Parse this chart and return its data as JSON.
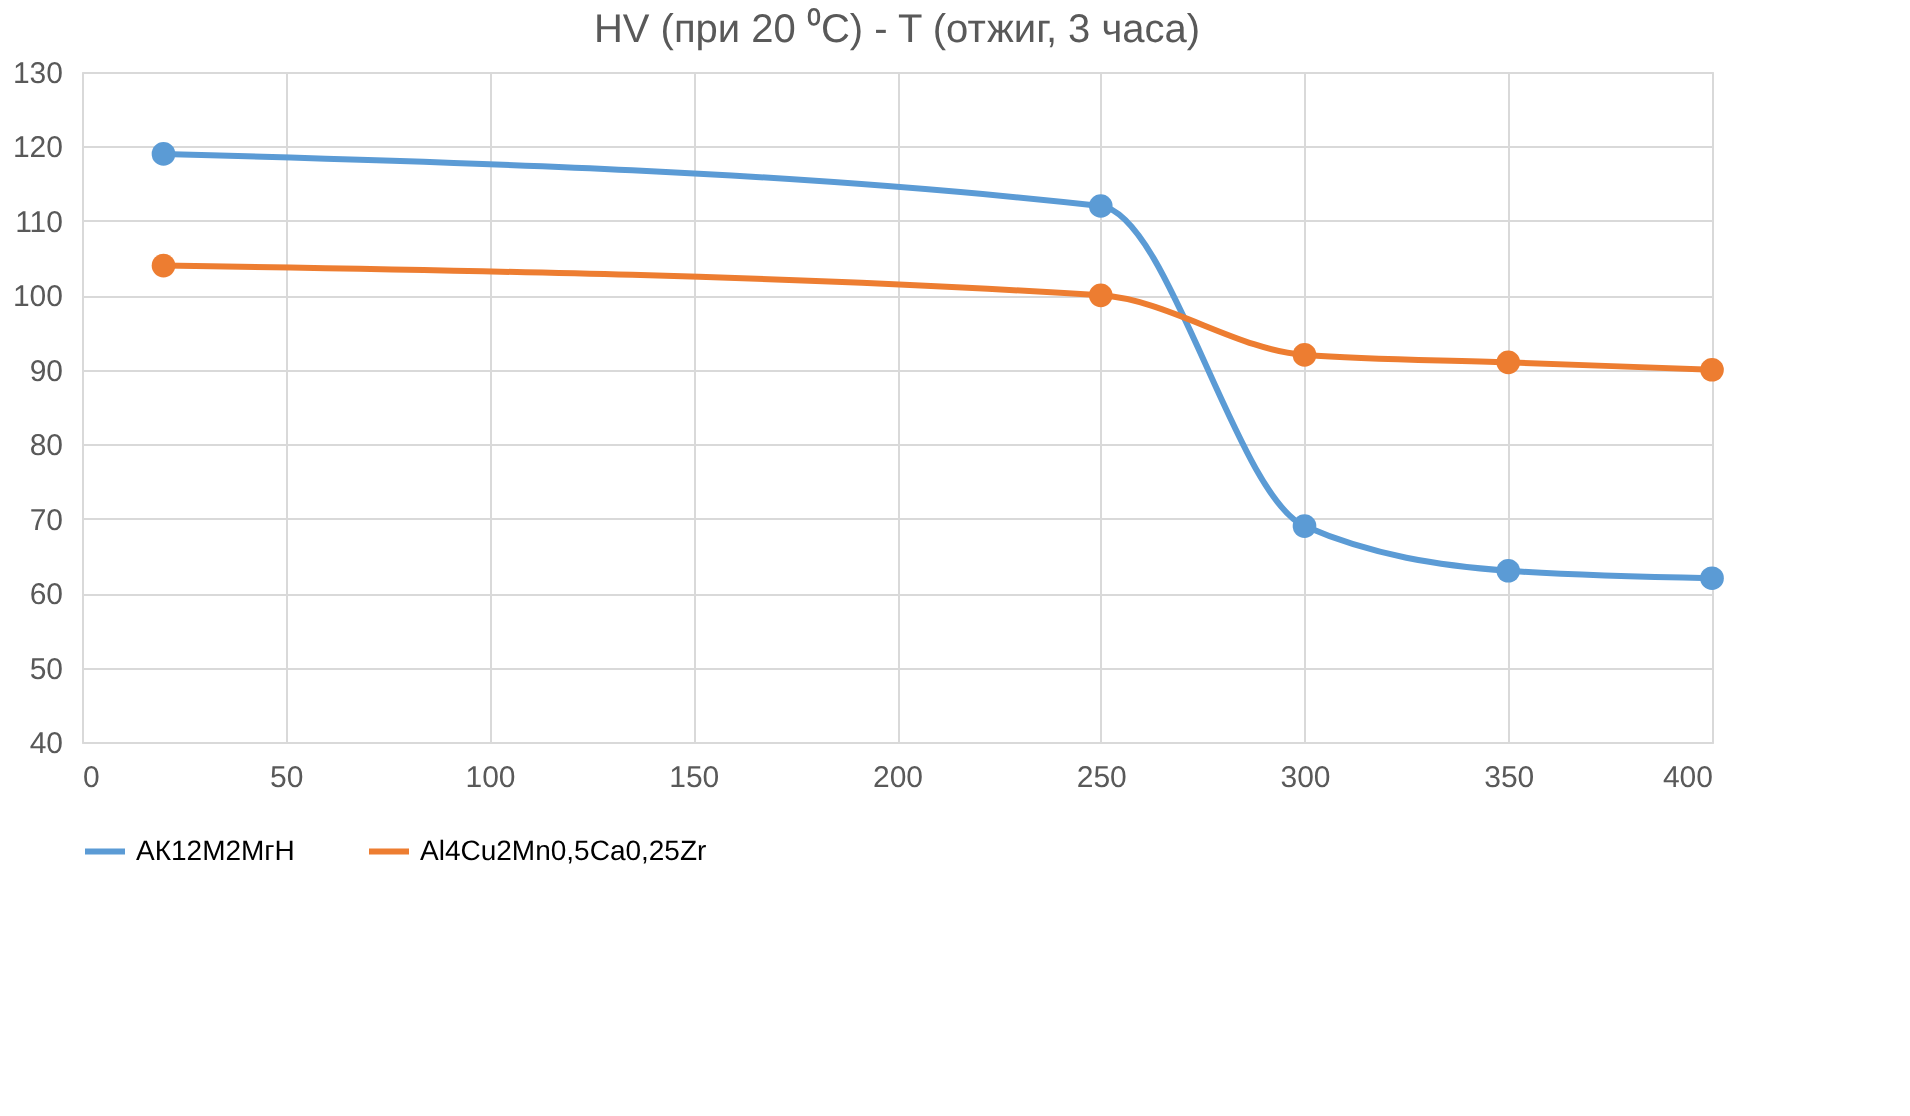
{
  "chart_data": {
    "type": "line",
    "title": "HV (при 20 ⁰C) - T (отжиг, 3 часа)",
    "x": [
      20,
      250,
      300,
      350,
      400
    ],
    "series": [
      {
        "name": "АК12М2МгН",
        "color": "#5b9bd5",
        "values": [
          119,
          112,
          69,
          63,
          62
        ]
      },
      {
        "name": "Al4Cu2Mn0,5Ca0,25Zr",
        "color": "#ed7d31",
        "values": [
          104,
          100,
          92,
          91,
          90
        ]
      }
    ],
    "xlim": [
      0,
      400
    ],
    "xticks": [
      0,
      50,
      100,
      150,
      200,
      250,
      300,
      350,
      400
    ],
    "ylim": [
      40,
      130
    ],
    "yticks": [
      40,
      50,
      60,
      70,
      80,
      90,
      100,
      110,
      120,
      130
    ],
    "grid": true,
    "legend": "bottom",
    "marker": "circle",
    "line_style": "solid"
  }
}
